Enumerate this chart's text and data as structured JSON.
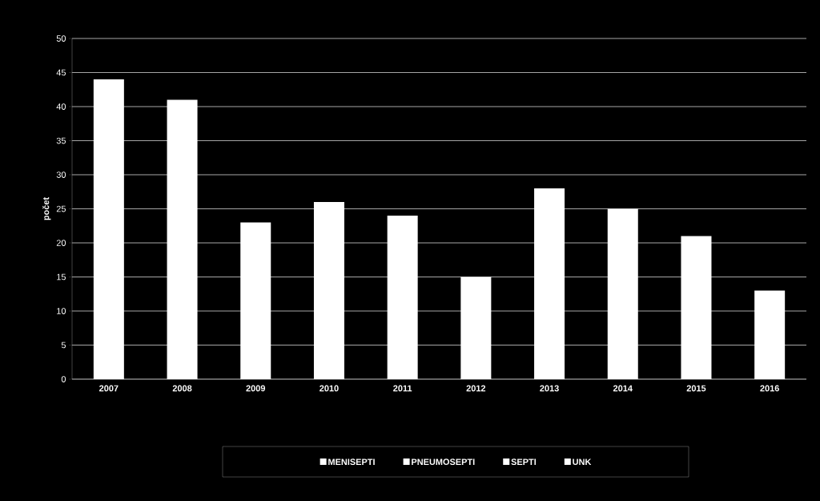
{
  "chart_data": {
    "type": "bar",
    "ylabel": "počet",
    "categories": [
      "2007",
      "2008",
      "2009",
      "2010",
      "2011",
      "2012",
      "2013",
      "2014",
      "2015",
      "2016"
    ],
    "values": [
      44,
      41,
      23,
      26,
      24,
      15,
      28,
      25,
      21,
      13
    ],
    "color": "#ffffff",
    "ylim": [
      0,
      50
    ],
    "yticks": [
      0,
      5,
      10,
      15,
      20,
      25,
      30,
      35,
      40,
      45,
      50
    ],
    "grid": "y",
    "annotations": [
      "MENISEPTI",
      "PNEUMOSEPTI",
      "SEPTI",
      "UNK"
    ]
  }
}
